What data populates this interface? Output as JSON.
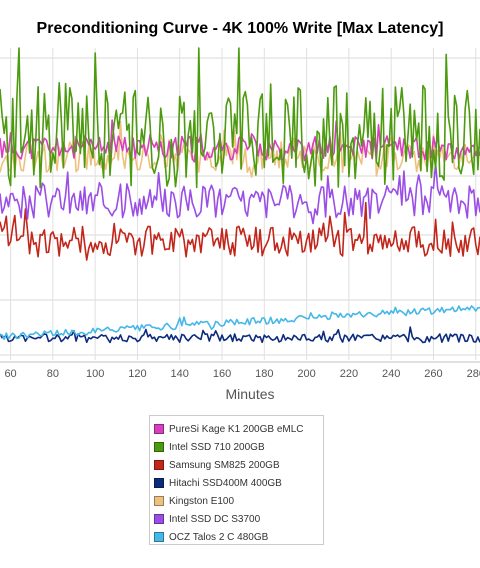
{
  "chart_data": {
    "type": "line",
    "title": "Preconditioning Curve - 4K 100% Write [Max Latency]",
    "xlabel": "Minutes",
    "ylabel": "",
    "x_ticks": [
      60,
      80,
      100,
      120,
      140,
      160,
      180,
      200,
      220,
      240,
      260,
      280
    ],
    "xlim": [
      55,
      282
    ],
    "ylim": [
      0,
      10
    ],
    "grid": true,
    "legend_position": "bottom",
    "series": [
      {
        "name": "PureSi Kage K1 200GB eMLC",
        "color": "#d63fbd",
        "level": 6.8,
        "spread": 0.7,
        "seed": 11
      },
      {
        "name": "Intel SSD 710 200GB",
        "color": "#4c9a0e",
        "level": 7.2,
        "spread": 3.1,
        "seed": 23
      },
      {
        "name": "Samsung SM825 200GB",
        "color": "#c2261b",
        "level": 3.8,
        "spread": 0.9,
        "seed": 37
      },
      {
        "name": "Hitachi SSD400M 400GB",
        "color": "#0d2b7e",
        "level": 0.7,
        "spread": 0.25,
        "seed": 41
      },
      {
        "name": "Kingston E100",
        "color": "#eec080",
        "level": 6.5,
        "spread": 0.9,
        "seed": 53
      },
      {
        "name": "Intel SSD DC S3700",
        "color": "#9b4ee6",
        "level": 5.1,
        "spread": 1.0,
        "seed": 67
      },
      {
        "name": "OCZ Talos 2 C 480GB",
        "color": "#45b7e8",
        "level": 0.75,
        "spread": 0.2,
        "trend": 0.004,
        "seed": 79
      }
    ]
  }
}
